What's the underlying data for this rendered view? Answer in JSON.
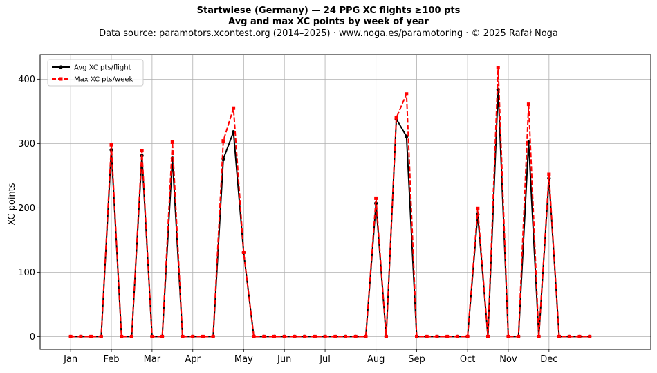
{
  "chart_data": {
    "type": "line",
    "title": "Startwiese (Germany)  —  24 PPG XC flights ≥100 pts",
    "subtitle": "Avg and max XC points by week of year",
    "source": "Data source: paramotors.xcontest.org (2014–2025)  ·  www.noga.es/paramotoring  ·  © 2025 Rafał Noga",
    "xlabel": "",
    "ylabel": "XC points",
    "xlim": [
      -3,
      57
    ],
    "ylim": [
      -20,
      438
    ],
    "grid": true,
    "legend_position": "top-left",
    "x_ticks": [
      {
        "label": "Jan",
        "x": 0
      },
      {
        "label": "Feb",
        "x": 4
      },
      {
        "label": "Mar",
        "x": 8
      },
      {
        "label": "Apr",
        "x": 12
      },
      {
        "label": "May",
        "x": 17
      },
      {
        "label": "Jun",
        "x": 21
      },
      {
        "label": "Jul",
        "x": 25
      },
      {
        "label": "Aug",
        "x": 30
      },
      {
        "label": "Sep",
        "x": 34
      },
      {
        "label": "Oct",
        "x": 39
      },
      {
        "label": "Nov",
        "x": 43
      },
      {
        "label": "Dec",
        "x": 47
      }
    ],
    "y_ticks": [
      0,
      100,
      200,
      300,
      400
    ],
    "x": [
      0,
      1,
      2,
      3,
      4,
      5,
      6,
      7,
      8,
      9,
      10,
      11,
      12,
      13,
      14,
      15,
      16,
      17,
      18,
      19,
      20,
      21,
      22,
      23,
      24,
      25,
      26,
      27,
      28,
      29,
      30,
      31,
      32,
      33,
      34,
      35,
      36,
      37,
      38,
      39,
      40,
      41,
      42,
      43,
      44,
      45,
      46,
      47,
      48,
      49,
      50,
      51
    ],
    "series": [
      {
        "name": "Avg XC pts/flight",
        "color": "#000000",
        "style": "solid",
        "marker": "circle",
        "values": [
          0,
          0,
          0,
          0,
          290,
          0,
          0,
          281,
          0,
          0,
          277,
          0,
          0,
          0,
          0,
          276,
          318,
          131,
          0,
          0,
          0,
          0,
          0,
          0,
          0,
          0,
          0,
          0,
          0,
          0,
          207,
          0,
          338,
          311,
          0,
          0,
          0,
          0,
          0,
          0,
          190,
          0,
          384,
          0,
          0,
          302,
          0,
          246,
          0,
          0,
          0,
          0
        ]
      },
      {
        "name": "Max XC pts/week",
        "color": "#ff0000",
        "style": "dashed",
        "marker": "square",
        "values": [
          0,
          0,
          0,
          0,
          298,
          0,
          0,
          289,
          0,
          0,
          302,
          0,
          0,
          0,
          0,
          304,
          355,
          131,
          0,
          0,
          0,
          0,
          0,
          0,
          0,
          0,
          0,
          0,
          0,
          0,
          215,
          0,
          340,
          377,
          0,
          0,
          0,
          0,
          0,
          0,
          199,
          0,
          418,
          0,
          0,
          361,
          0,
          252,
          0,
          0,
          0,
          0
        ]
      }
    ]
  }
}
